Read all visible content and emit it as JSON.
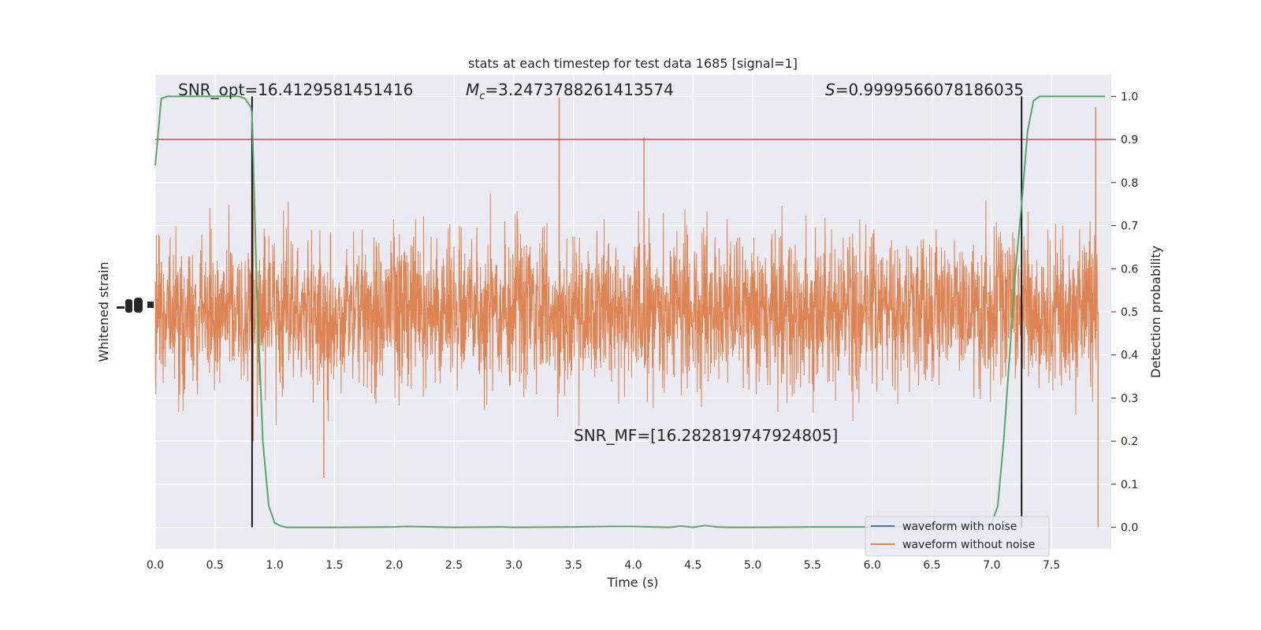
{
  "chart_data": {
    "type": "line",
    "title": "stats at each timestep for test data 1685 [signal=1]",
    "xlabel": "Time (s)",
    "ylabel_left": "Whitened strain",
    "ylabel_right": "Detection probability",
    "xlim": [
      0,
      8.0
    ],
    "ylim_right": [
      -0.05,
      1.05
    ],
    "x_ticks": [
      "0.0",
      "0.5",
      "1.0",
      "1.5",
      "2.0",
      "2.5",
      "3.0",
      "3.5",
      "4.0",
      "4.5",
      "5.0",
      "5.5",
      "6.0",
      "6.5",
      "7.0",
      "7.5"
    ],
    "y_right_ticks": [
      "0.0",
      "0.1",
      "0.2",
      "0.3",
      "0.4",
      "0.5",
      "0.6",
      "0.7",
      "0.8",
      "0.9",
      "1.0"
    ],
    "annotations": {
      "snr_opt": "SNR_opt=16.4129581451416",
      "mc_symbol": "M",
      "mc_sub": "c",
      "mc_value": "=3.2473788261413574",
      "s_symbol": "S",
      "s_value": "=0.9999566078186035",
      "snr_mf": "SNR_MF=[16.282819747924805]"
    },
    "threshold": 0.9,
    "vlines": [
      0.81,
      7.25
    ],
    "series": [
      {
        "name": "waveform with noise",
        "color": "#4c72b0"
      },
      {
        "name": "waveform without noise",
        "color": "#dd8452"
      },
      {
        "color": "#55a868",
        "x": [
          0.0,
          0.02,
          0.05,
          0.1,
          0.2,
          0.3,
          0.5,
          0.6,
          0.7,
          0.75,
          0.8,
          0.81,
          0.85,
          0.9,
          0.95,
          1.0,
          1.05,
          1.1,
          1.2,
          1.5,
          2.0,
          2.1,
          2.5,
          2.9,
          3.0,
          3.5,
          3.8,
          4.0,
          4.3,
          4.4,
          4.5,
          4.6,
          4.7,
          4.8,
          5.0,
          5.5,
          6.0,
          6.5,
          6.9,
          7.0,
          7.05,
          7.1,
          7.15,
          7.2,
          7.25,
          7.3,
          7.35,
          7.4,
          7.5,
          7.8,
          7.95
        ],
        "y": [
          0.84,
          0.9,
          0.995,
          1.0,
          1.0,
          1.0,
          1.0,
          1.0,
          1.0,
          0.995,
          0.975,
          0.96,
          0.55,
          0.2,
          0.05,
          0.01,
          0.003,
          0.0,
          0.0,
          0.0,
          0.001,
          0.002,
          0.0,
          0.001,
          0.0,
          0.001,
          0.002,
          0.002,
          0.0,
          0.003,
          0.0,
          0.004,
          0.001,
          0.0,
          0.0,
          0.001,
          0.001,
          0.002,
          0.002,
          0.01,
          0.05,
          0.2,
          0.4,
          0.6,
          0.75,
          0.92,
          0.99,
          1.0,
          1.0,
          1.0,
          1.0
        ]
      }
    ],
    "waveform_noise_color": "#dd8452",
    "grid": true,
    "legend_position": "lower right",
    "colors": {
      "background": "#eaeaf2",
      "grid": "#ffffff",
      "threshold": "#c44e52",
      "vline": "#000000",
      "text": "#262626"
    }
  }
}
